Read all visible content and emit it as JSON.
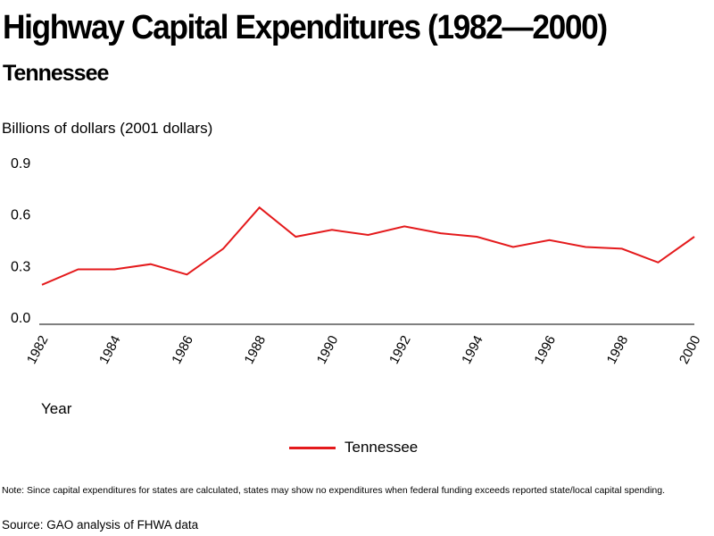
{
  "header": {
    "title": "Highway Capital Expenditures (1982—2000)",
    "subtitle": "Tennessee"
  },
  "chart_data": {
    "type": "line",
    "title": "Highway Capital Expenditures (1982—2000)",
    "subtitle": "Tennessee",
    "ylabel": "Billions of dollars (2001 dollars)",
    "xlabel": "Year",
    "ylim": [
      0,
      0.9
    ],
    "yticks": [
      "0.0",
      "0.3",
      "0.6",
      "0.9"
    ],
    "x": [
      1982,
      1983,
      1984,
      1985,
      1986,
      1987,
      1988,
      1989,
      1990,
      1991,
      1992,
      1993,
      1994,
      1995,
      1996,
      1997,
      1998,
      1999,
      2000
    ],
    "xticks": [
      "1982",
      "1984",
      "1986",
      "1988",
      "1990",
      "1992",
      "1994",
      "1996",
      "1998",
      "2000"
    ],
    "series": [
      {
        "name": "Tennessee",
        "color": "#e41a1c",
        "values": [
          0.23,
          0.32,
          0.32,
          0.35,
          0.29,
          0.44,
          0.68,
          0.51,
          0.55,
          0.52,
          0.57,
          0.53,
          0.51,
          0.45,
          0.49,
          0.45,
          0.44,
          0.36,
          0.51
        ]
      }
    ],
    "grid": false,
    "legend": "bottom-center"
  },
  "footer": {
    "note": "Note: Since capital expenditures for states are calculated, states may show no expenditures when federal funding exceeds reported state/local capital spending.",
    "source": "Source: GAO analysis of FHWA data"
  }
}
